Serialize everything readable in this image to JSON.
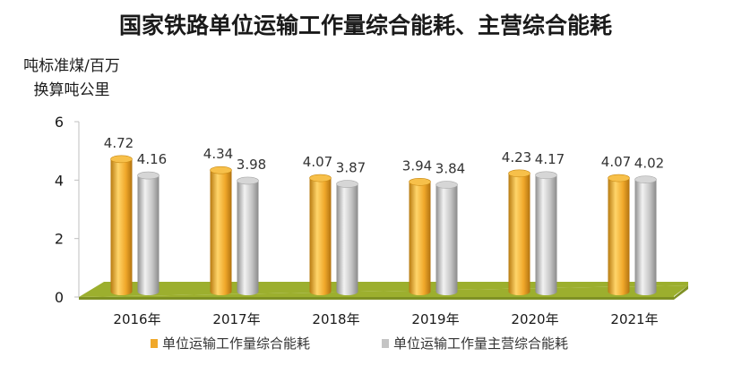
{
  "chart_data": {
    "type": "bar",
    "title": "国家铁路单位运输工作量综合能耗、主营综合能耗",
    "ylabel_lines": [
      "吨标准煤/百万",
      "换算吨公里"
    ],
    "xlabel": "",
    "categories": [
      "2016年",
      "2017年",
      "2018年",
      "2019年",
      "2020年",
      "2021年"
    ],
    "series": [
      {
        "name": "单位运输工作量综合能耗",
        "values": [
          4.72,
          4.34,
          4.07,
          3.94,
          4.23,
          4.07
        ],
        "color": "#f0a82a"
      },
      {
        "name": "单位运输工作量主营综合能耗",
        "values": [
          4.16,
          3.98,
          3.87,
          3.84,
          4.17,
          4.02
        ],
        "color": "#c4c4c4"
      }
    ],
    "ylim": [
      0,
      6
    ],
    "yticks": [
      "0",
      "2",
      "4",
      "6"
    ],
    "floor_color": "#9caf2e",
    "legend_position": "bottom",
    "grid": false
  }
}
